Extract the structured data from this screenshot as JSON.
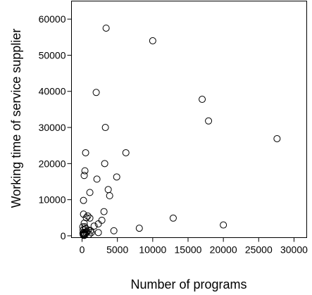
{
  "chart_data": {
    "type": "scatter",
    "title": "",
    "xlabel": "Number of programs",
    "ylabel": "Working time of service supplier",
    "xlim": [
      -1500,
      31800
    ],
    "ylim": [
      -500,
      65000
    ],
    "xticks": [
      0,
      5000,
      10000,
      15000,
      20000,
      25000,
      30000
    ],
    "xtick_labels": [
      "0",
      "5000",
      "10000",
      "15000",
      "20000",
      "25000",
      "30000"
    ],
    "yticks": [
      0,
      10000,
      20000,
      30000,
      40000,
      50000,
      60000
    ],
    "ytick_labels": [
      "0",
      "10000",
      "20000",
      "30000",
      "40000",
      "50000",
      "60000"
    ],
    "grid": false,
    "series": [
      {
        "marker": "open-circle",
        "x": [
          3400,
          10000,
          2000,
          3300,
          500,
          400,
          300,
          6200,
          3200,
          4900,
          2100,
          3700,
          3900,
          1100,
          200,
          3100,
          200,
          800,
          1100,
          600,
          2800,
          2300,
          1700,
          400,
          100,
          300,
          500,
          900,
          1200,
          700,
          150,
          250,
          350,
          120,
          180,
          220,
          160,
          260,
          300,
          2300,
          4500,
          8100,
          12900,
          20000,
          17000,
          17900,
          27600,
          1300,
          1000,
          600
        ],
        "y": [
          57500,
          54000,
          39700,
          30000,
          23000,
          18000,
          16700,
          23000,
          20000,
          16300,
          15700,
          12800,
          11100,
          12000,
          9800,
          6700,
          6000,
          5500,
          4900,
          5000,
          4300,
          3300,
          2700,
          2500,
          2500,
          3500,
          2000,
          1600,
          1400,
          1200,
          1600,
          1000,
          600,
          700,
          500,
          400,
          300,
          200,
          100,
          900,
          1400,
          2100,
          4900,
          3000,
          37800,
          31800,
          26900,
          900,
          400,
          800
        ]
      }
    ]
  }
}
